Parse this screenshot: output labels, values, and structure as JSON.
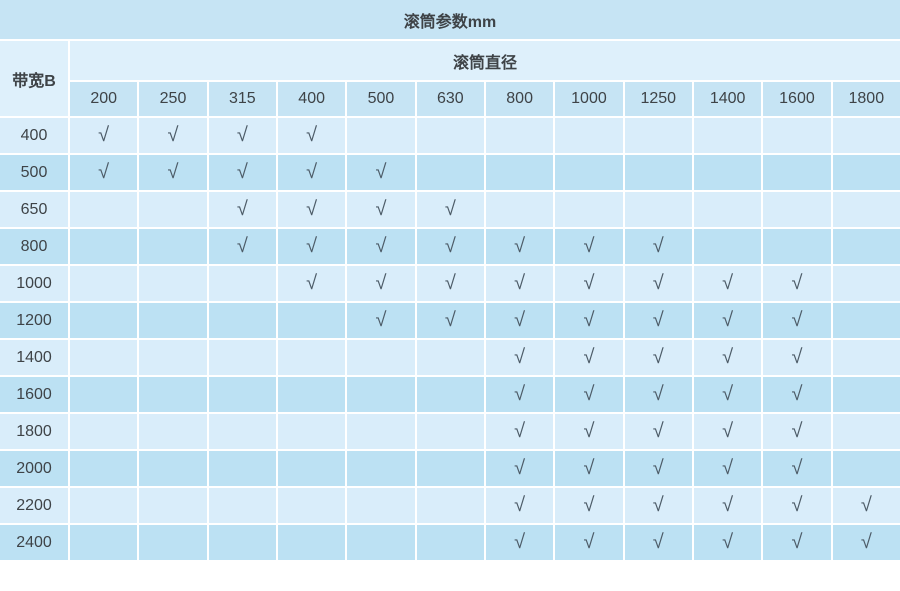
{
  "table": {
    "title": "滚筒参数mm",
    "belt_width_label": "带宽B",
    "diameter_group_label": "滚筒直径",
    "diameter_headers": [
      "200",
      "250",
      "315",
      "400",
      "500",
      "630",
      "800",
      "1000",
      "1250",
      "1400",
      "1600",
      "1800"
    ],
    "check_symbol": "√",
    "rows": [
      {
        "belt_width": "400",
        "checks": [
          1,
          1,
          1,
          1,
          0,
          0,
          0,
          0,
          0,
          0,
          0,
          0
        ]
      },
      {
        "belt_width": "500",
        "checks": [
          1,
          1,
          1,
          1,
          1,
          0,
          0,
          0,
          0,
          0,
          0,
          0
        ]
      },
      {
        "belt_width": "650",
        "checks": [
          0,
          0,
          1,
          1,
          1,
          1,
          0,
          0,
          0,
          0,
          0,
          0
        ]
      },
      {
        "belt_width": "800",
        "checks": [
          0,
          0,
          1,
          1,
          1,
          1,
          1,
          1,
          1,
          0,
          0,
          0
        ]
      },
      {
        "belt_width": "1000",
        "checks": [
          0,
          0,
          0,
          1,
          1,
          1,
          1,
          1,
          1,
          1,
          1,
          0
        ]
      },
      {
        "belt_width": "1200",
        "checks": [
          0,
          0,
          0,
          0,
          1,
          1,
          1,
          1,
          1,
          1,
          1,
          0
        ]
      },
      {
        "belt_width": "1400",
        "checks": [
          0,
          0,
          0,
          0,
          0,
          0,
          1,
          1,
          1,
          1,
          1,
          0
        ]
      },
      {
        "belt_width": "1600",
        "checks": [
          0,
          0,
          0,
          0,
          0,
          0,
          1,
          1,
          1,
          1,
          1,
          0
        ]
      },
      {
        "belt_width": "1800",
        "checks": [
          0,
          0,
          0,
          0,
          0,
          0,
          1,
          1,
          1,
          1,
          1,
          0
        ]
      },
      {
        "belt_width": "2000",
        "checks": [
          0,
          0,
          0,
          0,
          0,
          0,
          1,
          1,
          1,
          1,
          1,
          0
        ]
      },
      {
        "belt_width": "2200",
        "checks": [
          0,
          0,
          0,
          0,
          0,
          0,
          1,
          1,
          1,
          1,
          1,
          1
        ]
      },
      {
        "belt_width": "2400",
        "checks": [
          0,
          0,
          0,
          0,
          0,
          0,
          1,
          1,
          1,
          1,
          1,
          1
        ]
      }
    ]
  },
  "colors": {
    "header_bg": "#c6e4f4",
    "group_header_bg": "#def0fb",
    "row_light_bg": "#d9edfa",
    "row_dark_bg": "#bce1f3",
    "grid_line": "#ffffff",
    "text": "#3e4347",
    "check": "#4d5c68"
  },
  "chart_data": {
    "type": "table",
    "title": "滚筒参数mm",
    "row_axis_label": "带宽B",
    "col_axis_label": "滚筒直径",
    "columns": [
      200,
      250,
      315,
      400,
      500,
      630,
      800,
      1000,
      1250,
      1400,
      1600,
      1800
    ],
    "rows": [
      400,
      500,
      650,
      800,
      1000,
      1200,
      1400,
      1600,
      1800,
      2000,
      2200,
      2400
    ],
    "cell_symbol_when_available": "√",
    "available_combinations": {
      "400": [
        200,
        250,
        315,
        400
      ],
      "500": [
        200,
        250,
        315,
        400,
        500
      ],
      "650": [
        315,
        400,
        500,
        630
      ],
      "800": [
        315,
        400,
        500,
        630,
        800,
        1000,
        1250
      ],
      "1000": [
        400,
        500,
        630,
        800,
        1000,
        1250,
        1400,
        1600
      ],
      "1200": [
        500,
        630,
        800,
        1000,
        1250,
        1400,
        1600
      ],
      "1400": [
        800,
        1000,
        1250,
        1400,
        1600
      ],
      "1600": [
        800,
        1000,
        1250,
        1400,
        1600
      ],
      "1800": [
        800,
        1000,
        1250,
        1400,
        1600
      ],
      "2000": [
        800,
        1000,
        1250,
        1400,
        1600
      ],
      "2200": [
        800,
        1000,
        1250,
        1400,
        1600,
        1800
      ],
      "2400": [
        800,
        1000,
        1250,
        1400,
        1600,
        1800
      ]
    }
  }
}
